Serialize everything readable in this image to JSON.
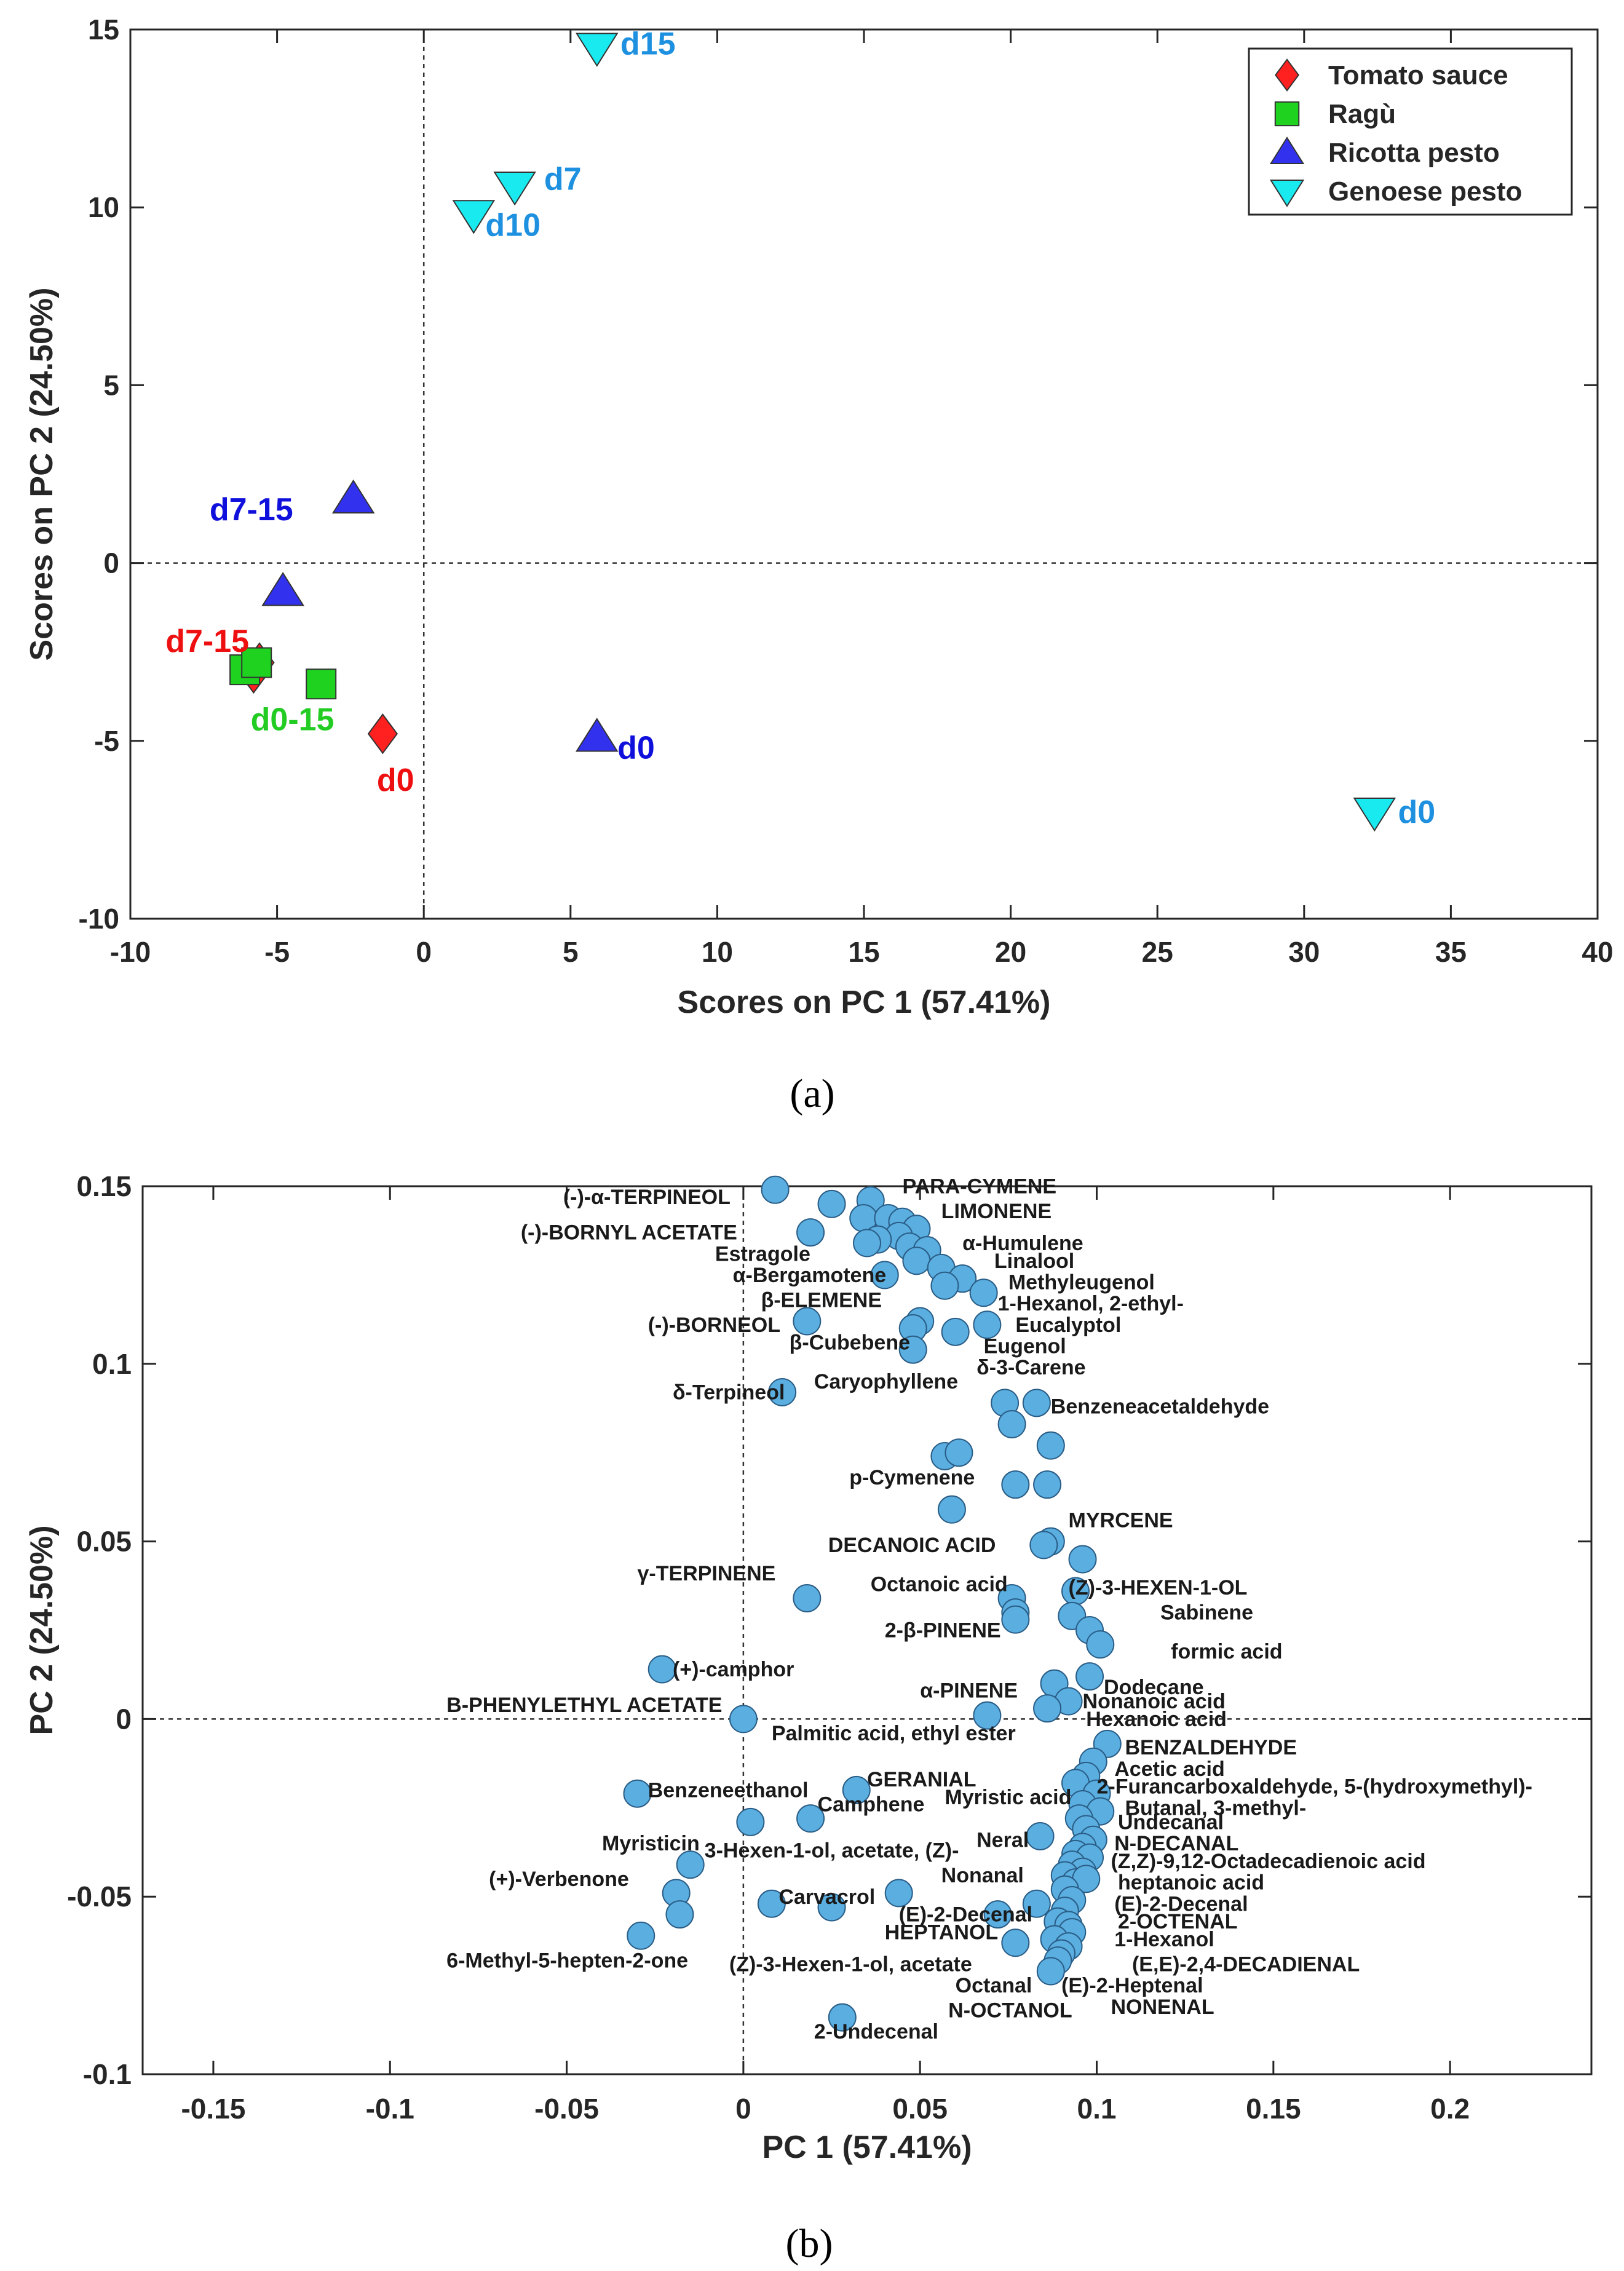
{
  "chart_data": [
    {
      "type": "scatter",
      "panel_label": "(a)",
      "xlabel": "Scores on PC 1 (57.41%)",
      "ylabel": "Scores on PC 2 (24.50%)",
      "xlim": [
        -10,
        40
      ],
      "ylim": [
        -10,
        15
      ],
      "xticks": [
        -10,
        -5,
        0,
        5,
        10,
        15,
        20,
        25,
        30,
        35,
        40
      ],
      "yticks": [
        -10,
        -5,
        0,
        5,
        10,
        15
      ],
      "legend": "top-right",
      "series": [
        {
          "name": "Tomato sauce",
          "marker": "diamond",
          "color": "#ff2020",
          "points": [
            [
              -5.6,
              -2.8
            ],
            [
              -5.8,
              -3.1
            ],
            [
              -1.4,
              -4.8
            ]
          ]
        },
        {
          "name": "Ragù",
          "marker": "square",
          "color": "#1fd21f",
          "points": [
            [
              -6.1,
              -3.0
            ],
            [
              -5.7,
              -2.8
            ],
            [
              -3.5,
              -3.4
            ]
          ]
        },
        {
          "name": "Ricotta pesto",
          "marker": "triangle-up",
          "color": "#3232ee",
          "points": [
            [
              -2.4,
              1.8
            ],
            [
              -4.8,
              -0.8
            ],
            [
              5.9,
              -4.9
            ]
          ]
        },
        {
          "name": "Genoese pesto",
          "marker": "triangle-down",
          "color": "#19eaf0",
          "points": [
            [
              5.9,
              14.5
            ],
            [
              3.1,
              10.6
            ],
            [
              1.7,
              9.8
            ],
            [
              32.4,
              -7.0
            ]
          ]
        }
      ],
      "annotations": [
        {
          "text": "d15",
          "x": 6.7,
          "y": 14.3,
          "color": "#1e90e0"
        },
        {
          "text": "d7",
          "x": 4.1,
          "y": 10.5,
          "color": "#1e90e0"
        },
        {
          "text": "d10",
          "x": 2.1,
          "y": 9.2,
          "color": "#1e90e0"
        },
        {
          "text": "d0",
          "x": 33.2,
          "y": -7.3,
          "color": "#1e90e0"
        },
        {
          "text": "d7-15",
          "x": -7.3,
          "y": 1.2,
          "color": "#1010dd"
        },
        {
          "text": "d0",
          "x": 6.6,
          "y": -5.5,
          "color": "#1010dd"
        },
        {
          "text": "d7-15",
          "x": -8.8,
          "y": -2.5,
          "color": "#ee1010"
        },
        {
          "text": "d0-15",
          "x": -5.9,
          "y": -4.7,
          "color": "#22cc22"
        },
        {
          "text": "d0",
          "x": -1.6,
          "y": -6.4,
          "color": "#ee1010"
        }
      ]
    },
    {
      "type": "scatter",
      "panel_label": "(b)",
      "xlabel": "PC 1 (57.41%)",
      "ylabel": "PC 2 (24.50%)",
      "xlim": [
        -0.17,
        0.24
      ],
      "ylim": [
        -0.1,
        0.15
      ],
      "xticks": [
        -0.15,
        -0.1,
        -0.05,
        0,
        0.05,
        0.1,
        0.15,
        0.2
      ],
      "xtick_labels": [
        "-0.15",
        "-0.1",
        "-0.05",
        "0",
        "0.05",
        "0.1",
        "0.15",
        "0.2"
      ],
      "yticks": [
        -0.1,
        -0.05,
        0,
        0.05,
        0.1,
        0.15
      ],
      "ytick_labels": [
        "-0.1",
        "-0.05",
        "0",
        "0.05",
        "0.1",
        "0.15"
      ],
      "marker_color": "#5aaee0",
      "points": [
        [
          0.009,
          0.149
        ],
        [
          0.025,
          0.145
        ],
        [
          0.036,
          0.146
        ],
        [
          0.034,
          0.141
        ],
        [
          0.041,
          0.141
        ],
        [
          0.045,
          0.14
        ],
        [
          0.049,
          0.138
        ],
        [
          0.044,
          0.136
        ],
        [
          0.038,
          0.135
        ],
        [
          0.035,
          0.134
        ],
        [
          0.047,
          0.133
        ],
        [
          0.052,
          0.132
        ],
        [
          0.049,
          0.129
        ],
        [
          0.056,
          0.127
        ],
        [
          0.04,
          0.125
        ],
        [
          0.062,
          0.124
        ],
        [
          0.057,
          0.122
        ],
        [
          0.068,
          0.12
        ],
        [
          0.019,
          0.137
        ],
        [
          0.018,
          0.112
        ],
        [
          0.05,
          0.112
        ],
        [
          0.069,
          0.111
        ],
        [
          0.048,
          0.11
        ],
        [
          0.06,
          0.109
        ],
        [
          0.048,
          0.104
        ],
        [
          0.011,
          0.092
        ],
        [
          0.074,
          0.089
        ],
        [
          0.083,
          0.089
        ],
        [
          0.076,
          0.083
        ],
        [
          0.087,
          0.077
        ],
        [
          0.057,
          0.074
        ],
        [
          0.061,
          0.075
        ],
        [
          0.077,
          0.066
        ],
        [
          0.086,
          0.066
        ],
        [
          0.059,
          0.059
        ],
        [
          0.087,
          0.05
        ],
        [
          0.085,
          0.049
        ],
        [
          0.096,
          0.045
        ],
        [
          0.018,
          0.034
        ],
        [
          0.076,
          0.034
        ],
        [
          0.094,
          0.036
        ],
        [
          0.077,
          0.03
        ],
        [
          0.093,
          0.029
        ],
        [
          0.098,
          0.025
        ],
        [
          0.077,
          0.028
        ],
        [
          0.101,
          0.021
        ],
        [
          -0.023,
          0.014
        ],
        [
          0.088,
          0.01
        ],
        [
          0.098,
          0.012
        ],
        [
          0.092,
          0.005
        ],
        [
          0.086,
          0.003
        ],
        [
          0.0,
          0.0
        ],
        [
          0.069,
          0.001
        ],
        [
          0.103,
          -0.007
        ],
        [
          0.099,
          -0.012
        ],
        [
          0.097,
          -0.016
        ],
        [
          0.094,
          -0.018
        ],
        [
          -0.03,
          -0.021
        ],
        [
          0.032,
          -0.02
        ],
        [
          0.1,
          -0.021
        ],
        [
          0.096,
          -0.024
        ],
        [
          0.101,
          -0.026
        ],
        [
          0.019,
          -0.028
        ],
        [
          0.002,
          -0.029
        ],
        [
          0.095,
          -0.028
        ],
        [
          0.097,
          -0.031
        ],
        [
          0.084,
          -0.033
        ],
        [
          0.099,
          -0.034
        ],
        [
          0.096,
          -0.036
        ],
        [
          0.094,
          -0.038
        ],
        [
          -0.015,
          -0.041
        ],
        [
          0.098,
          -0.039
        ],
        [
          0.093,
          -0.041
        ],
        [
          0.096,
          -0.043
        ],
        [
          0.091,
          -0.044
        ],
        [
          0.094,
          -0.046
        ],
        [
          0.097,
          -0.045
        ],
        [
          0.091,
          -0.048
        ],
        [
          -0.019,
          -0.049
        ],
        [
          0.044,
          -0.049
        ],
        [
          0.008,
          -0.052
        ],
        [
          0.025,
          -0.053
        ],
        [
          0.093,
          -0.051
        ],
        [
          0.083,
          -0.052
        ],
        [
          0.091,
          -0.054
        ],
        [
          -0.018,
          -0.055
        ],
        [
          0.072,
          -0.055
        ],
        [
          0.089,
          -0.057
        ],
        [
          0.092,
          -0.058
        ],
        [
          0.093,
          -0.06
        ],
        [
          0.088,
          -0.062
        ],
        [
          -0.029,
          -0.061
        ],
        [
          0.077,
          -0.063
        ],
        [
          0.092,
          -0.064
        ],
        [
          0.09,
          -0.066
        ],
        [
          0.089,
          -0.068
        ],
        [
          0.087,
          -0.071
        ],
        [
          0.028,
          -0.084
        ]
      ],
      "labels": [
        {
          "text": "PARA-CYMENE",
          "x": 0.045,
          "y": 0.148
        },
        {
          "text": "(-)-α-TERPINEOL",
          "x": -0.051,
          "y": 0.145
        },
        {
          "text": "LIMONENE",
          "x": 0.056,
          "y": 0.141
        },
        {
          "text": "(-)-BORNYL ACETATE",
          "x": -0.063,
          "y": 0.135
        },
        {
          "text": "α-Humulene",
          "x": 0.062,
          "y": 0.132
        },
        {
          "text": "Estragole",
          "x": -0.008,
          "y": 0.129
        },
        {
          "text": "Linalool",
          "x": 0.071,
          "y": 0.127
        },
        {
          "text": "α-Bergamotene",
          "x": -0.003,
          "y": 0.123
        },
        {
          "text": "Methyleugenol",
          "x": 0.075,
          "y": 0.121
        },
        {
          "text": "β-ELEMENE",
          "x": 0.005,
          "y": 0.116
        },
        {
          "text": "1-Hexanol, 2-ethyl-",
          "x": 0.072,
          "y": 0.115
        },
        {
          "text": "(-)-BORNEOL",
          "x": -0.027,
          "y": 0.109
        },
        {
          "text": "Eucalyptol",
          "x": 0.077,
          "y": 0.109
        },
        {
          "text": "β-Cubebene",
          "x": 0.013,
          "y": 0.104
        },
        {
          "text": "Eugenol",
          "x": 0.068,
          "y": 0.103
        },
        {
          "text": "δ-3-Carene",
          "x": 0.066,
          "y": 0.097
        },
        {
          "text": "Caryophyllene",
          "x": 0.02,
          "y": 0.093
        },
        {
          "text": "δ-Terpineol",
          "x": -0.02,
          "y": 0.09
        },
        {
          "text": "Benzeneacetaldehyde",
          "x": 0.087,
          "y": 0.086
        },
        {
          "text": "p-Cymenene",
          "x": 0.03,
          "y": 0.066
        },
        {
          "text": "MYRCENE",
          "x": 0.092,
          "y": 0.054
        },
        {
          "text": "DECANOIC ACID",
          "x": 0.024,
          "y": 0.047
        },
        {
          "text": "γ-TERPINENE",
          "x": -0.03,
          "y": 0.039
        },
        {
          "text": "Octanoic acid",
          "x": 0.036,
          "y": 0.036
        },
        {
          "text": "(Z)-3-HEXEN-1-OL",
          "x": 0.092,
          "y": 0.035
        },
        {
          "text": "Sabinene",
          "x": 0.118,
          "y": 0.028
        },
        {
          "text": "2-β-PINENE",
          "x": 0.04,
          "y": 0.023
        },
        {
          "text": "formic acid",
          "x": 0.121,
          "y": 0.017
        },
        {
          "text": "(+)-camphor",
          "x": -0.02,
          "y": 0.012
        },
        {
          "text": "Dodecane",
          "x": 0.102,
          "y": 0.007
        },
        {
          "text": "α-PINENE",
          "x": 0.05,
          "y": 0.006
        },
        {
          "text": "Nonanoic acid",
          "x": 0.096,
          "y": 0.003
        },
        {
          "text": "B-PHENYLETHYL ACETATE",
          "x": -0.084,
          "y": 0.002
        },
        {
          "text": "Hexanoic acid",
          "x": 0.097,
          "y": -0.002
        },
        {
          "text": "Palmitic acid, ethyl ester",
          "x": 0.008,
          "y": -0.006
        },
        {
          "text": "BENZALDEHYDE",
          "x": 0.108,
          "y": -0.01
        },
        {
          "text": "Acetic acid",
          "x": 0.105,
          "y": -0.016
        },
        {
          "text": "GERANIAL",
          "x": 0.035,
          "y": -0.019
        },
        {
          "text": "2-Furancarboxaldehyde, 5-(hydroxymethyl)-",
          "x": 0.1,
          "y": -0.021
        },
        {
          "text": "Benzeneethanol",
          "x": -0.027,
          "y": -0.022
        },
        {
          "text": "Myristic acid",
          "x": 0.057,
          "y": -0.024
        },
        {
          "text": "Camphene",
          "x": 0.021,
          "y": -0.026
        },
        {
          "text": "Butanal, 3-methyl-",
          "x": 0.108,
          "y": -0.027
        },
        {
          "text": "Undecanal",
          "x": 0.106,
          "y": -0.031
        },
        {
          "text": "Neral",
          "x": 0.066,
          "y": -0.036
        },
        {
          "text": "Myristicin",
          "x": -0.04,
          "y": -0.037
        },
        {
          "text": "N-DECANAL",
          "x": 0.105,
          "y": -0.037
        },
        {
          "text": "3-Hexen-1-ol, acetate, (Z)-",
          "x": -0.011,
          "y": -0.039
        },
        {
          "text": "(Z,Z)-9,12-Octadecadienoic acid",
          "x": 0.104,
          "y": -0.042
        },
        {
          "text": "Nonanal",
          "x": 0.056,
          "y": -0.046
        },
        {
          "text": "heptanoic acid",
          "x": 0.106,
          "y": -0.048
        },
        {
          "text": "(+)-Verbenone",
          "x": -0.072,
          "y": -0.047
        },
        {
          "text": "Carvacrol",
          "x": 0.01,
          "y": -0.052
        },
        {
          "text": "(E)-2-Decenal",
          "x": 0.105,
          "y": -0.054
        },
        {
          "text": "(E)-2-Decenal",
          "x": 0.044,
          "y": -0.057
        },
        {
          "text": "2-OCTENAL",
          "x": 0.106,
          "y": -0.059
        },
        {
          "text": "HEPTANOL",
          "x": 0.04,
          "y": -0.062
        },
        {
          "text": "1-Hexanol",
          "x": 0.105,
          "y": -0.064
        },
        {
          "text": "6-Methyl-5-hepten-2-one",
          "x": -0.084,
          "y": -0.07
        },
        {
          "text": "(Z)-3-Hexen-1-ol, acetate",
          "x": -0.004,
          "y": -0.071
        },
        {
          "text": "(E,E)-2,4-DECADIENAL",
          "x": 0.11,
          "y": -0.071
        },
        {
          "text": "Octanal",
          "x": 0.06,
          "y": -0.077
        },
        {
          "text": "(E)-2-Heptenal",
          "x": 0.09,
          "y": -0.077
        },
        {
          "text": "NONENAL",
          "x": 0.104,
          "y": -0.083
        },
        {
          "text": "N-OCTANOL",
          "x": 0.058,
          "y": -0.084
        },
        {
          "text": "2-Undecenal",
          "x": 0.02,
          "y": -0.09
        }
      ]
    }
  ]
}
